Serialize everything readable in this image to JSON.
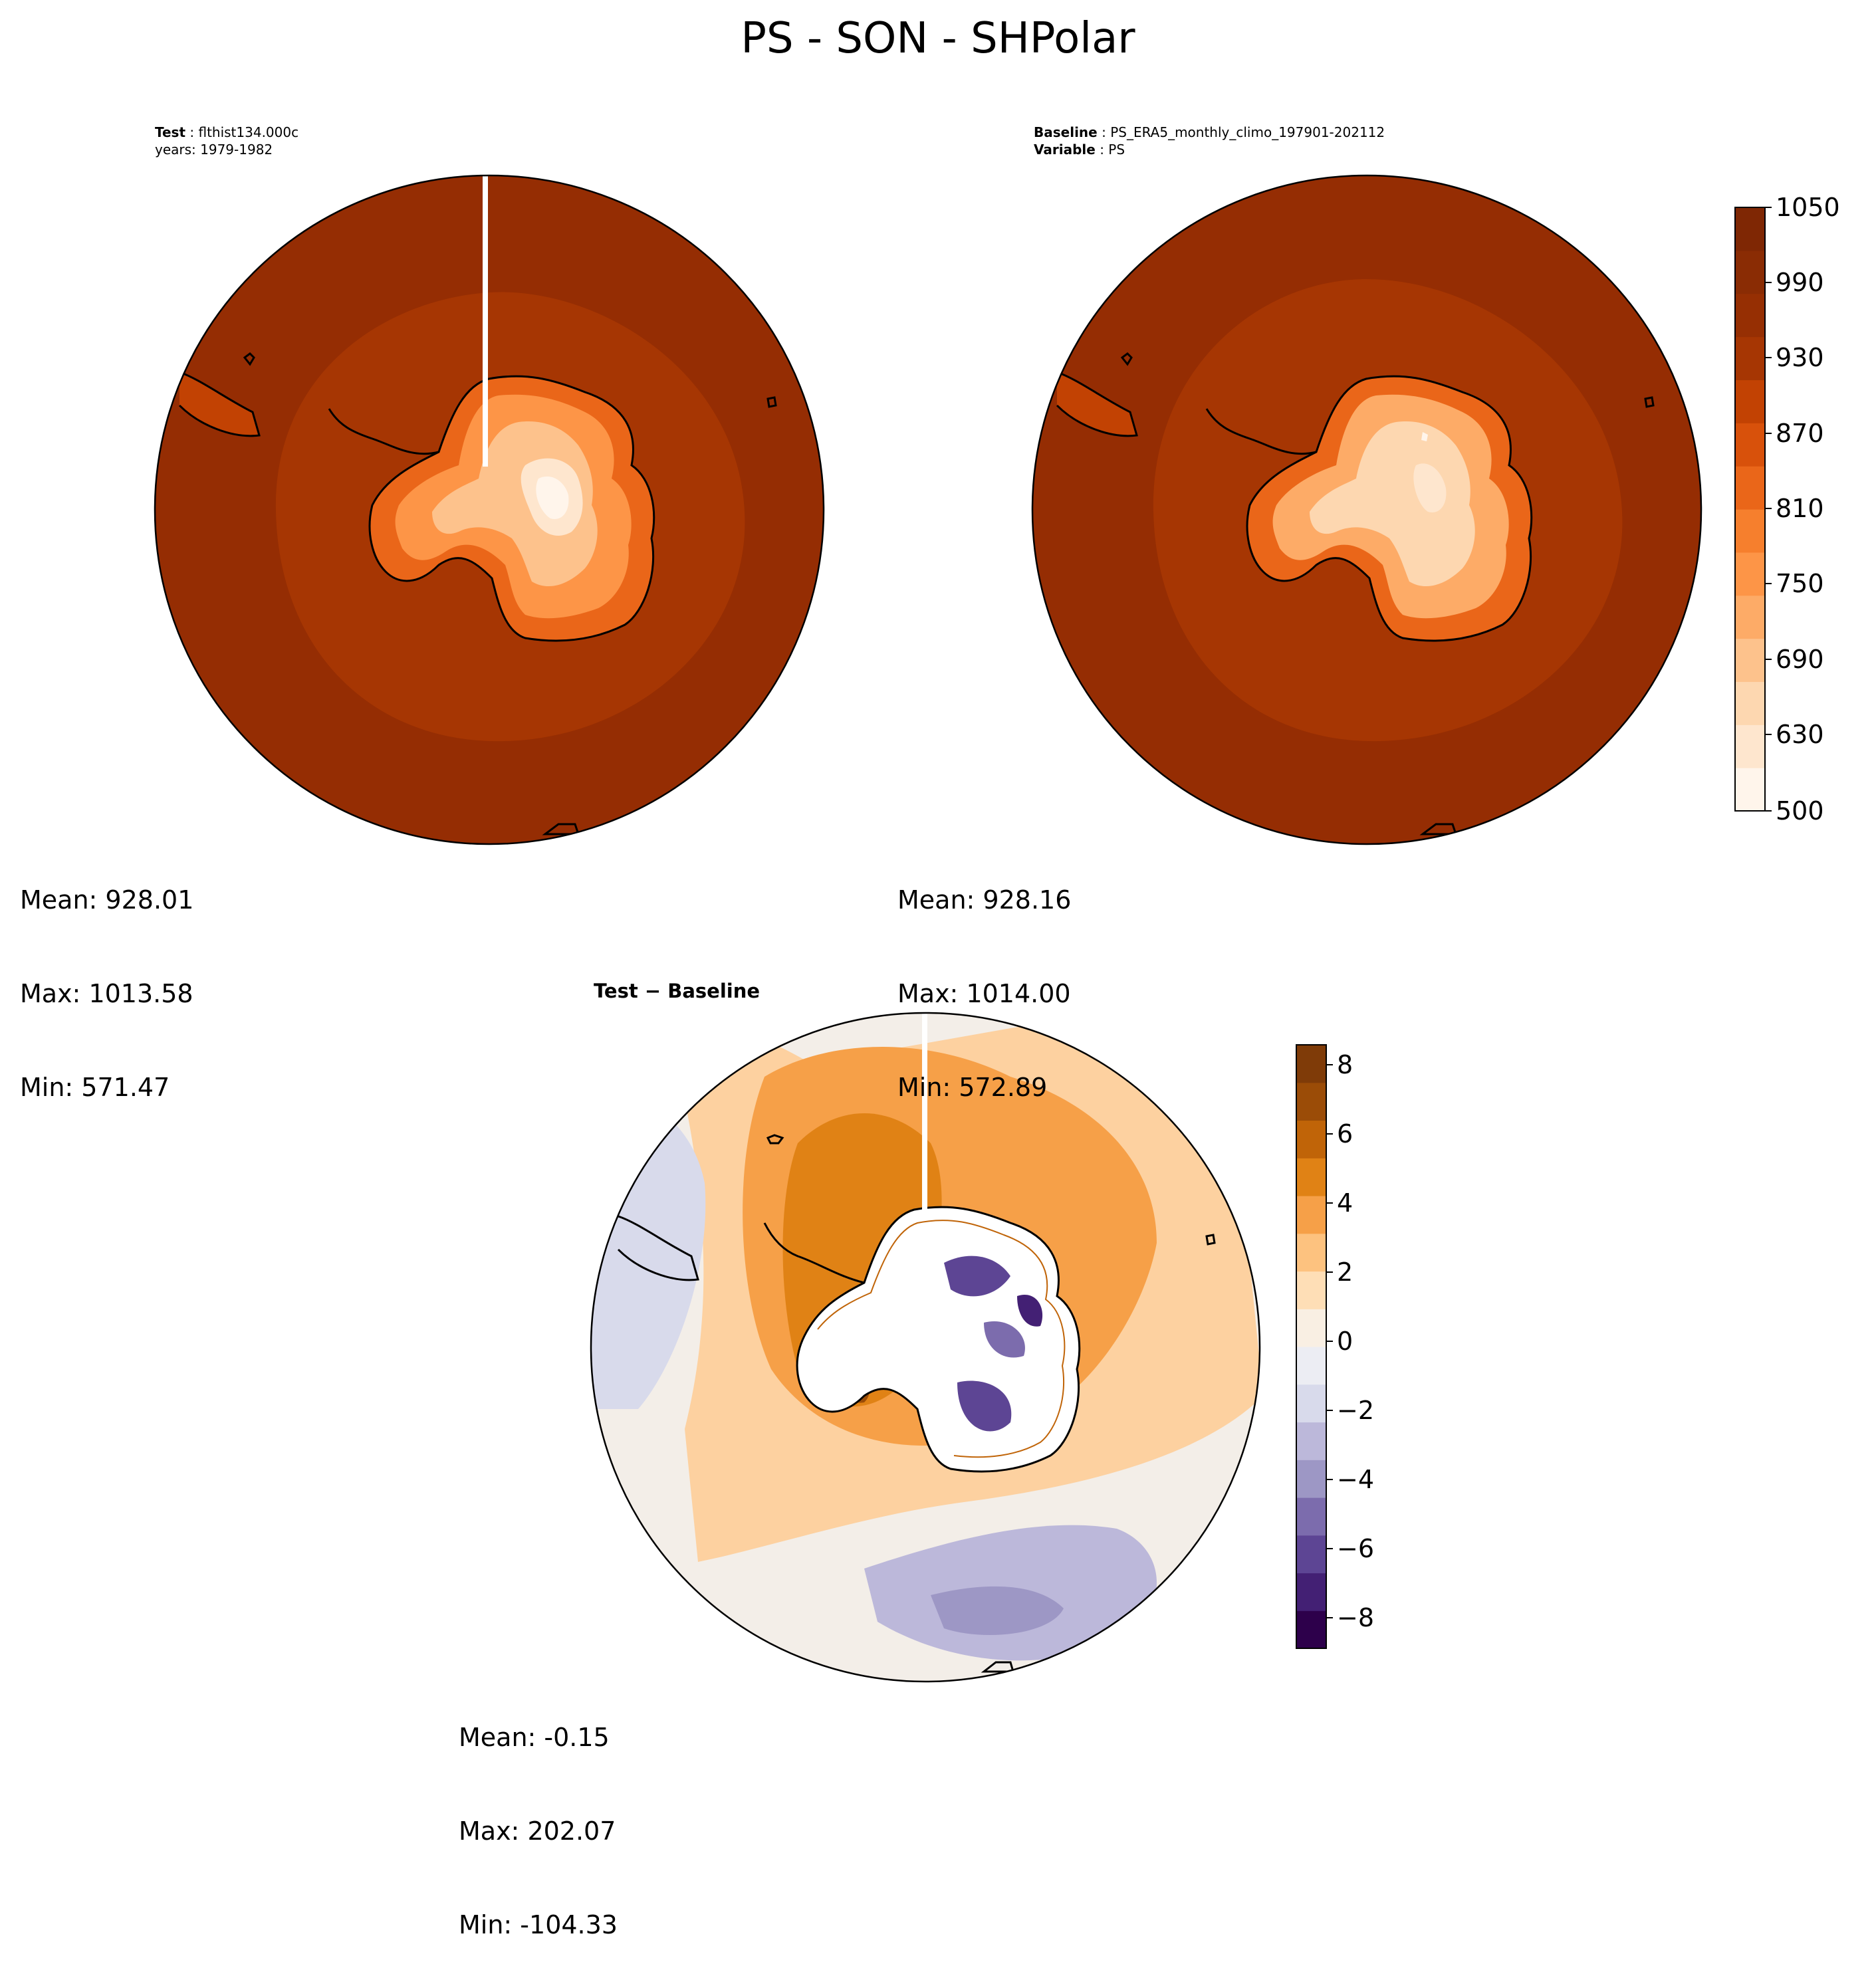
{
  "figure": {
    "title": "PS - SON - SHPolar"
  },
  "panels": [
    {
      "id": "test",
      "header": [
        {
          "bold": "Test",
          "text": " : flthist134.000c"
        },
        {
          "bold": "",
          "text": "years: 1979-1982"
        }
      ],
      "stats": {
        "mean": "Mean: 928.01",
        "max": "Max: 1013.58",
        "min": "Min: 571.47"
      }
    },
    {
      "id": "baseline",
      "header": [
        {
          "bold": "Baseline",
          "text": " : PS_ERA5_monthly_climo_197901-202112"
        },
        {
          "bold": "Variable",
          "text": " : PS"
        }
      ],
      "stats": {
        "mean": "Mean: 928.16",
        "max": "Max: 1014.00",
        "min": "Min: 572.89"
      }
    },
    {
      "id": "difference",
      "header": [
        {
          "bold": "Test − Baseline",
          "text": ""
        }
      ],
      "stats": {
        "mean": "Mean: -0.15",
        "max": "Max: 202.07",
        "min": "Min: -104.33"
      }
    }
  ],
  "colorbars": {
    "field": {
      "colormap": "Oranges",
      "ticks": [
        "1050",
        "990",
        "930",
        "870",
        "810",
        "750",
        "690",
        "630",
        "500"
      ],
      "colors": [
        "#fff5eb",
        "#fee6ce",
        "#fdd7b0",
        "#fdc28c",
        "#fdab67",
        "#fd9547",
        "#f67f2d",
        "#ea6619",
        "#d8510b",
        "#c24203",
        "#a63603",
        "#962f03",
        "#8a2c04",
        "#7f2704"
      ]
    },
    "diff": {
      "colormap": "PuOr_r",
      "ticks": [
        "8",
        "6",
        "4",
        "2",
        "0",
        "−2",
        "−4",
        "−6",
        "−8"
      ],
      "colors": [
        "#2d004b",
        "#432074",
        "#5d4594",
        "#7c6cad",
        "#9d97c5",
        "#bcb8da",
        "#d8daeb",
        "#ecedf3",
        "#f9efe3",
        "#fedeb6",
        "#fdc27f",
        "#f6a048",
        "#e08215",
        "#c06408",
        "#9b4c07",
        "#7f3b08"
      ]
    }
  },
  "chart_data": [
    {
      "type": "heatmap",
      "title": "Test : flthist134.000c, years: 1979-1982",
      "projection": "south polar stereographic",
      "variable": "PS",
      "colorbar_range": [
        500,
        1050
      ],
      "colorbar_ticks": [
        500,
        630,
        690,
        750,
        810,
        870,
        930,
        990,
        1050
      ],
      "stats": {
        "mean": 928.01,
        "max": 1013.58,
        "min": 571.47
      }
    },
    {
      "type": "heatmap",
      "title": "Baseline : PS_ERA5_monthly_climo_197901-202112, Variable : PS",
      "projection": "south polar stereographic",
      "variable": "PS",
      "colorbar_range": [
        500,
        1050
      ],
      "colorbar_ticks": [
        500,
        630,
        690,
        750,
        810,
        870,
        930,
        990,
        1050
      ],
      "stats": {
        "mean": 928.16,
        "max": 1014.0,
        "min": 572.89
      }
    },
    {
      "type": "heatmap",
      "title": "Test − Baseline",
      "projection": "south polar stereographic",
      "variable": "PS",
      "colorbar_range": [
        -9,
        8.5
      ],
      "colorbar_ticks": [
        -8,
        -6,
        -4,
        -2,
        0,
        2,
        4,
        6,
        8
      ],
      "stats": {
        "mean": -0.15,
        "max": 202.07,
        "min": -104.33
      }
    }
  ]
}
